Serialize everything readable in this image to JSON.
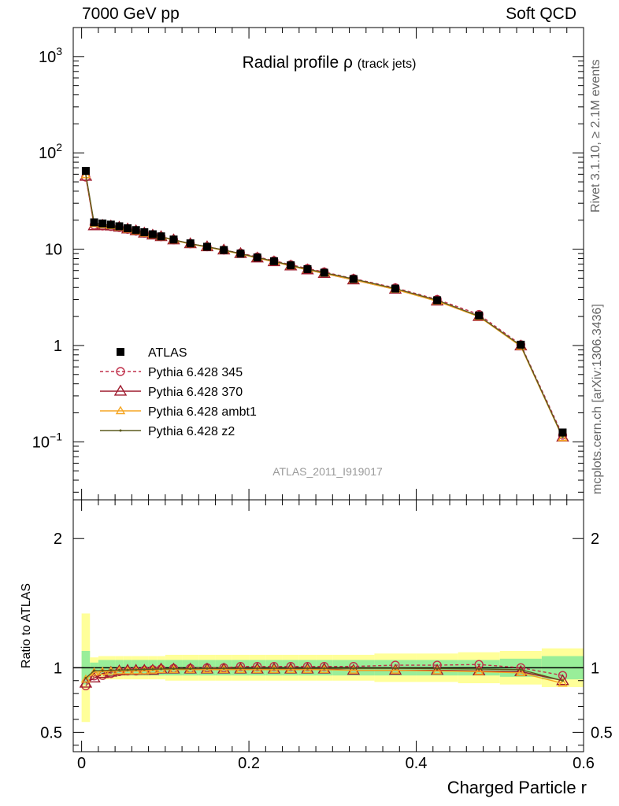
{
  "header": {
    "left_text": "7000 GeV pp",
    "right_text": "Soft QCD"
  },
  "side_labels": {
    "rivet": "Rivet 3.1.10, ≥ 2.1M events",
    "mcplots": "mcplots.cern.ch [arXiv:1306.3436]"
  },
  "chart_data": {
    "type": "scatter",
    "title": "Radial profile",
    "title_symbol": "ρ",
    "title_suffix": "(track jets)",
    "analysis_label": "ATLAS_2011_I919017",
    "xlabel": "Charged Particle r",
    "ratio_ylabel": "Ratio to ATLAS",
    "xlim": [
      -0.01,
      0.6
    ],
    "ylim": [
      0.025,
      2000
    ],
    "yscale": "log",
    "ratio_ylim": [
      0.35,
      2.3
    ],
    "x_ticks": [
      "0",
      "0.2",
      "0.4",
      "0.6"
    ],
    "y_ticks": [
      "10^-1",
      "1",
      "10",
      "10^2",
      "10^3"
    ],
    "ratio_ticks": [
      "0.5",
      "1",
      "2"
    ],
    "x": [
      0.005,
      0.015,
      0.025,
      0.035,
      0.045,
      0.055,
      0.065,
      0.075,
      0.085,
      0.095,
      0.11,
      0.13,
      0.15,
      0.17,
      0.19,
      0.21,
      0.23,
      0.25,
      0.27,
      0.29,
      0.325,
      0.375,
      0.425,
      0.475,
      0.525,
      0.575
    ],
    "x_edges": [
      0.0,
      0.01,
      0.02,
      0.03,
      0.04,
      0.05,
      0.06,
      0.07,
      0.08,
      0.09,
      0.1,
      0.12,
      0.14,
      0.16,
      0.18,
      0.2,
      0.22,
      0.24,
      0.26,
      0.28,
      0.3,
      0.35,
      0.4,
      0.45,
      0.5,
      0.55,
      0.6
    ],
    "band_green": [
      0.13,
      0.04,
      0.06,
      0.06,
      0.06,
      0.06,
      0.06,
      0.06,
      0.06,
      0.06,
      0.06,
      0.06,
      0.06,
      0.06,
      0.06,
      0.06,
      0.06,
      0.06,
      0.06,
      0.06,
      0.06,
      0.06,
      0.06,
      0.06,
      0.07,
      0.09
    ],
    "band_yellow": [
      0.42,
      0.08,
      0.09,
      0.09,
      0.09,
      0.09,
      0.09,
      0.09,
      0.09,
      0.09,
      0.1,
      0.1,
      0.1,
      0.1,
      0.1,
      0.1,
      0.1,
      0.1,
      0.1,
      0.1,
      0.1,
      0.11,
      0.11,
      0.12,
      0.13,
      0.15
    ],
    "series": [
      {
        "name": "ATLAS",
        "style": "data",
        "color": "#000000",
        "values": [
          65,
          19,
          18.5,
          18,
          17.3,
          16.5,
          15.8,
          15,
          14.3,
          13.6,
          12.6,
          11.5,
          10.6,
          9.8,
          9.0,
          8.2,
          7.5,
          6.8,
          6.2,
          5.7,
          4.9,
          3.9,
          2.95,
          2.05,
          1.02,
          0.125
        ]
      },
      {
        "name": "Pythia 6.428 345",
        "style": "circle",
        "dashed": true,
        "color": "#c0304b",
        "values": [
          56,
          17.8,
          17.4,
          17.2,
          16.8,
          16.1,
          15.4,
          14.7,
          14.1,
          13.5,
          12.5,
          11.4,
          10.6,
          9.8,
          9.1,
          8.3,
          7.6,
          6.9,
          6.3,
          5.8,
          4.95,
          3.97,
          3.01,
          2.1,
          1.02,
          0.117
        ],
        "ratio": [
          0.86,
          0.937,
          0.94,
          0.955,
          0.97,
          0.975,
          0.975,
          0.98,
          0.985,
          0.99,
          0.995,
          0.995,
          1.0,
          1.0,
          1.01,
          1.01,
          1.01,
          1.01,
          1.01,
          1.01,
          1.01,
          1.02,
          1.02,
          1.025,
          1.0,
          0.94
        ]
      },
      {
        "name": "Pythia 6.428 370",
        "style": "triangle",
        "color": "#9e1a2e",
        "values": [
          57,
          17.5,
          17.7,
          17.4,
          16.9,
          16.2,
          15.5,
          14.7,
          14.0,
          13.5,
          12.5,
          11.4,
          10.6,
          9.8,
          9.0,
          8.1,
          7.4,
          6.7,
          6.1,
          5.6,
          4.8,
          3.83,
          2.89,
          2.0,
          0.99,
          0.112
        ],
        "ratio": [
          0.88,
          0.92,
          0.955,
          0.965,
          0.975,
          0.98,
          0.98,
          0.98,
          0.98,
          0.99,
          0.99,
          0.99,
          0.99,
          0.99,
          0.99,
          0.99,
          0.99,
          0.99,
          0.99,
          0.99,
          0.98,
          0.98,
          0.98,
          0.975,
          0.97,
          0.9
        ]
      },
      {
        "name": "Pythia 6.428 ambt1",
        "style": "open-triangle-small",
        "color": "#f5a623",
        "values": [
          59,
          18.3,
          17.9,
          17.5,
          16.9,
          16.1,
          15.4,
          14.6,
          14.0,
          13.4,
          12.4,
          11.3,
          10.5,
          9.7,
          8.9,
          8.1,
          7.4,
          6.7,
          6.1,
          5.6,
          4.8,
          3.82,
          2.88,
          1.99,
          0.98,
          0.11
        ],
        "ratio": [
          0.91,
          0.965,
          0.97,
          0.972,
          0.975,
          0.975,
          0.975,
          0.975,
          0.98,
          0.985,
          0.985,
          0.985,
          0.985,
          0.985,
          0.985,
          0.985,
          0.985,
          0.985,
          0.985,
          0.985,
          0.98,
          0.98,
          0.975,
          0.97,
          0.96,
          0.88
        ]
      },
      {
        "name": "Pythia 6.428 z2",
        "style": "dot",
        "color": "#5c5a1e",
        "values": [
          60,
          18.6,
          18.1,
          17.6,
          17.0,
          16.2,
          15.5,
          14.7,
          14.1,
          13.5,
          12.5,
          11.4,
          10.6,
          9.8,
          9.0,
          8.2,
          7.5,
          6.8,
          6.2,
          5.7,
          4.9,
          3.9,
          2.95,
          2.02,
          1.0,
          0.112
        ],
        "ratio": [
          0.92,
          0.978,
          0.978,
          0.98,
          0.982,
          0.983,
          0.985,
          0.987,
          0.988,
          0.99,
          0.992,
          0.992,
          0.995,
          0.995,
          0.995,
          0.995,
          0.995,
          0.995,
          0.995,
          0.995,
          0.995,
          0.995,
          0.993,
          0.99,
          0.985,
          0.9
        ]
      }
    ],
    "legend_placement": "left-lower"
  }
}
